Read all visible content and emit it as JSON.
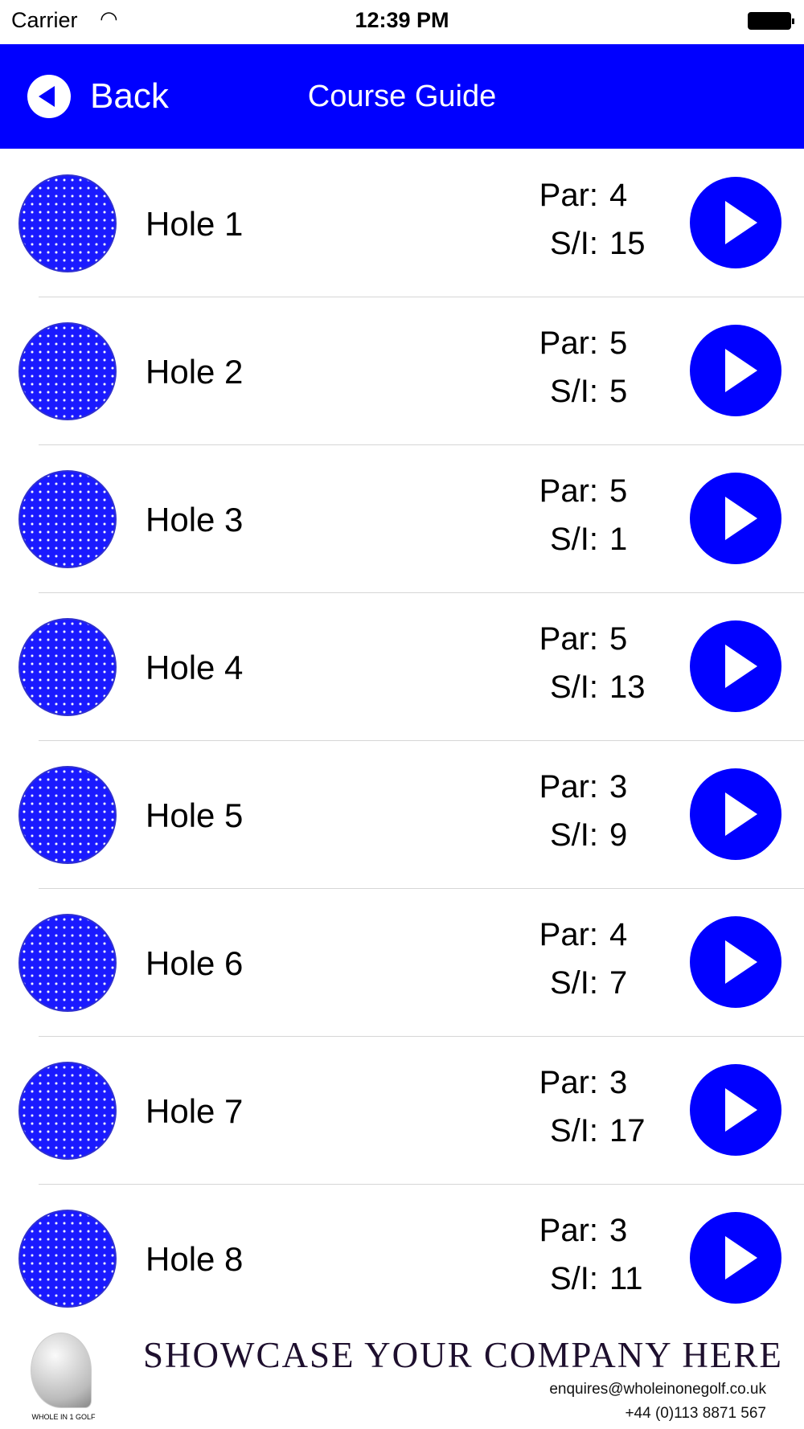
{
  "status_bar": {
    "carrier": "Carrier",
    "time": "12:39 PM"
  },
  "nav": {
    "back_label": "Back",
    "title": "Course Guide"
  },
  "labels": {
    "par": "Par:",
    "si": "S/I:"
  },
  "colors": {
    "accent": "#0000ff"
  },
  "holes": [
    {
      "name": "Hole 1",
      "par": "4",
      "si": "15"
    },
    {
      "name": "Hole 2",
      "par": "5",
      "si": "5"
    },
    {
      "name": "Hole 3",
      "par": "5",
      "si": "1"
    },
    {
      "name": "Hole 4",
      "par": "5",
      "si": "13"
    },
    {
      "name": "Hole 5",
      "par": "3",
      "si": "9"
    },
    {
      "name": "Hole 6",
      "par": "4",
      "si": "7"
    },
    {
      "name": "Hole 7",
      "par": "3",
      "si": "17"
    },
    {
      "name": "Hole 8",
      "par": "3",
      "si": "11"
    }
  ],
  "footer": {
    "logo_text": "WHOLE IN 1 GOLF",
    "headline": "SHOWCASE YOUR COMPANY HERE",
    "email": "enquires@wholeinonegolf.co.uk",
    "phone": "+44 (0)113 8871 567"
  }
}
